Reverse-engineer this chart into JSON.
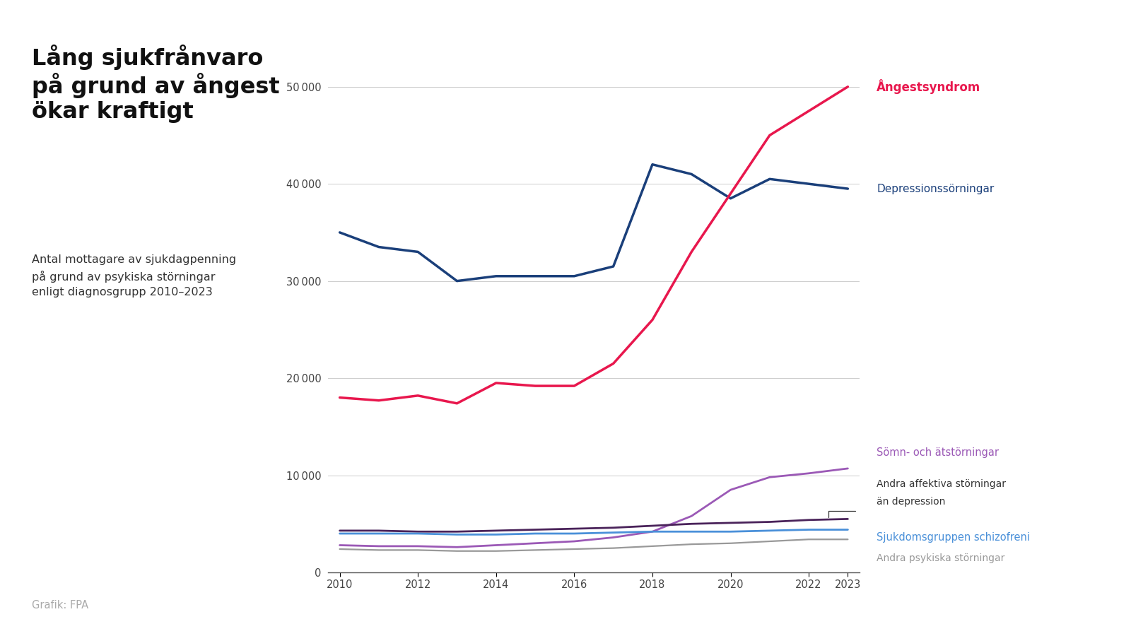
{
  "years": [
    2010,
    2011,
    2012,
    2013,
    2014,
    2015,
    2016,
    2017,
    2018,
    2019,
    2020,
    2021,
    2022,
    2023
  ],
  "angestsyndrom": [
    18000,
    17700,
    18200,
    17400,
    19500,
    19200,
    19200,
    21500,
    26000,
    33000,
    39000,
    45000,
    47500,
    50000
  ],
  "depressionsstorningar": [
    35000,
    33500,
    33000,
    30000,
    30500,
    30500,
    30500,
    31500,
    42000,
    41000,
    38500,
    40500,
    40000,
    39500
  ],
  "somn_atstorningar": [
    2800,
    2700,
    2700,
    2600,
    2800,
    3000,
    3200,
    3600,
    4200,
    5800,
    8500,
    9800,
    10200,
    10700
  ],
  "andra_affektiva": [
    4300,
    4300,
    4200,
    4200,
    4300,
    4400,
    4500,
    4600,
    4800,
    5000,
    5100,
    5200,
    5400,
    5500
  ],
  "schizofreni": [
    4000,
    4000,
    4000,
    3900,
    3900,
    4000,
    4000,
    4100,
    4200,
    4200,
    4200,
    4300,
    4400,
    4400
  ],
  "andra_psykiska": [
    2400,
    2300,
    2300,
    2200,
    2200,
    2300,
    2400,
    2500,
    2700,
    2900,
    3000,
    3200,
    3400,
    3400
  ],
  "colors": {
    "angestsyndrom": "#e8174d",
    "depressionsstorningar": "#1a3f7a",
    "somn_atstorningar": "#9b59b6",
    "andra_affektiva": "#4a235a",
    "schizofreni": "#4a90d9",
    "andra_psykiska": "#999999"
  },
  "title": "Lång sjukfrånvaro\npå grund av ångest\nökar kraftigt",
  "subtitle": "Antal mottagare av sjukdagpenning\npå grund av psykiska störningar\nenligt diagnosgrupp 2010–2023",
  "source": "Grafik: FPA",
  "labels": {
    "angestsyndrom": "Ångestsyndrom",
    "depressionsstorningar": "Depressionssörningar",
    "somn_atstorningar": "Sömn- och ätstörningar",
    "andra_affektiva_1": "Andra affektiva störningar",
    "andra_affektiva_2": "än depression",
    "schizofreni": "Sjukdomsgruppen schizofreni",
    "andra_psykiska": "Andra psykiska störningar"
  },
  "background_color": "#ffffff"
}
